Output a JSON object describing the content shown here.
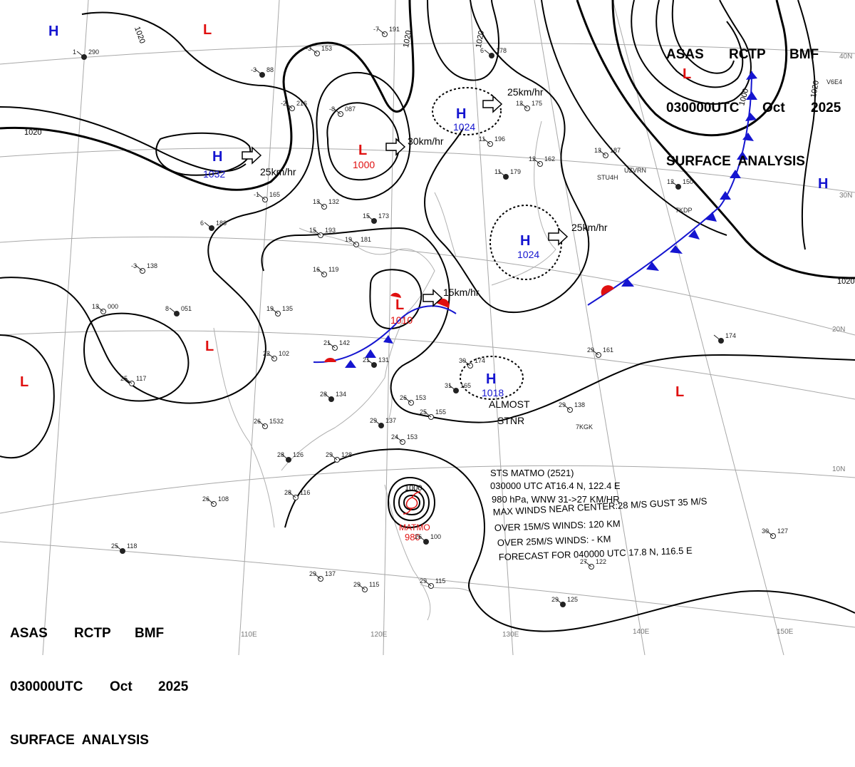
{
  "title": {
    "line1": [
      "ASAS",
      "RCTP",
      "BMF"
    ],
    "line2": [
      "030000UTC",
      "Oct",
      "2025"
    ],
    "line3": "SURFACE  ANALYSIS"
  },
  "isobars": [
    "1020",
    "1020",
    "1020",
    "1020",
    "1020",
    "1000",
    "1000",
    "1020"
  ],
  "pressure_centers": [
    {
      "type": "H",
      "value": "1032"
    },
    {
      "type": "L",
      "value": "1000"
    },
    {
      "type": "H",
      "value": "1024"
    },
    {
      "type": "H",
      "value": "1024"
    },
    {
      "type": "L",
      "value": "1010"
    },
    {
      "type": "H",
      "value": "1018"
    },
    {
      "type": "L",
      "value": "980"
    }
  ],
  "unlabeled_centers": [
    "H",
    "L",
    "L",
    "L",
    "H",
    "L",
    "L"
  ],
  "movements": [
    "25km/hr",
    "30km/hr",
    "25km/hr",
    "25km/hr",
    "15km/hr"
  ],
  "notes": [
    "ALMOST",
    "STNR"
  ],
  "typhoon": {
    "name": "MATMO",
    "info": [
      "STS  MATMO  (2521)",
      "030000 UTC  AT16.4 N, 122.4 E",
      "980 hPa, WNW  31->27 KM/HR",
      "MAX WINDS NEAR CENTER:28 M/S GUST 35 M/S",
      "OVER 15M/S WINDS: 120 KM",
      "OVER 25M/S WINDS: - KM",
      "FORECAST FOR 040000 UTC 17.8 N, 116.5 E"
    ]
  },
  "longitude_labels": [
    "110E",
    "120E",
    "130E",
    "140E",
    "150E"
  ],
  "latitude_labels": [
    "40N",
    "30N",
    "20N",
    "10N"
  ],
  "stations": [
    {
      "p": "290",
      "t": "1"
    },
    {
      "p": "216",
      "t": "-2"
    },
    {
      "p": "153",
      "t": "-3"
    },
    {
      "p": "88",
      "t": "-3"
    },
    {
      "p": "087",
      "t": "-8"
    },
    {
      "p": "191",
      "t": "-7"
    },
    {
      "p": "178",
      "t": "6"
    },
    {
      "p": "175",
      "t": "12"
    },
    {
      "p": "196",
      "t": "11"
    },
    {
      "p": "179",
      "t": "11"
    },
    {
      "p": "162",
      "t": "12"
    },
    {
      "p": "187",
      "t": "13"
    },
    {
      "p": "150",
      "t": "12"
    },
    {
      "p": "165",
      "t": "-1"
    },
    {
      "p": "132",
      "t": "13"
    },
    {
      "p": "173",
      "t": "15"
    },
    {
      "p": "193",
      "t": "15"
    },
    {
      "p": "181",
      "t": "19"
    },
    {
      "p": "188",
      "t": "6"
    },
    {
      "p": "138",
      "t": "-3"
    },
    {
      "p": "000",
      "t": "13"
    },
    {
      "p": "051",
      "t": "8"
    },
    {
      "p": "135",
      "t": "19"
    },
    {
      "p": "119",
      "t": "16"
    },
    {
      "p": "131",
      "t": "21"
    },
    {
      "p": "142",
      "t": "21"
    },
    {
      "p": "102",
      "t": "22"
    },
    {
      "p": "134",
      "t": "28"
    },
    {
      "p": "153",
      "t": "26"
    },
    {
      "p": "155",
      "t": "25"
    },
    {
      "p": "165",
      "t": "31"
    },
    {
      "p": "174",
      "t": "30"
    },
    {
      "p": "161",
      "t": "29"
    },
    {
      "p": "174",
      "t": ""
    },
    {
      "p": "138",
      "t": "29"
    },
    {
      "p": "117",
      "t": "25"
    },
    {
      "p": "126",
      "t": "28"
    },
    {
      "p": "108",
      "t": "26"
    },
    {
      "p": "116",
      "t": "28"
    },
    {
      "p": "118",
      "t": "25"
    },
    {
      "p": "137",
      "t": "29"
    },
    {
      "p": "115",
      "t": "29"
    },
    {
      "p": "100",
      "t": "26"
    },
    {
      "p": "127",
      "t": "30"
    },
    {
      "p": "122",
      "t": "27"
    },
    {
      "p": "125",
      "t": "29"
    },
    {
      "p": "1532",
      "t": "26"
    },
    {
      "p": "128",
      "t": "29"
    },
    {
      "p": "137",
      "t": "29"
    },
    {
      "p": "153",
      "t": "24"
    },
    {
      "p": "115",
      "t": "29"
    }
  ],
  "station_ids": [
    "STU4H",
    "UZVRN",
    "7KDP",
    "7KGK",
    "V6E4"
  ],
  "colors": {
    "high": "#1515d0",
    "low": "#e01010",
    "isobar": "#000000",
    "grid": "#9a9a9a"
  }
}
